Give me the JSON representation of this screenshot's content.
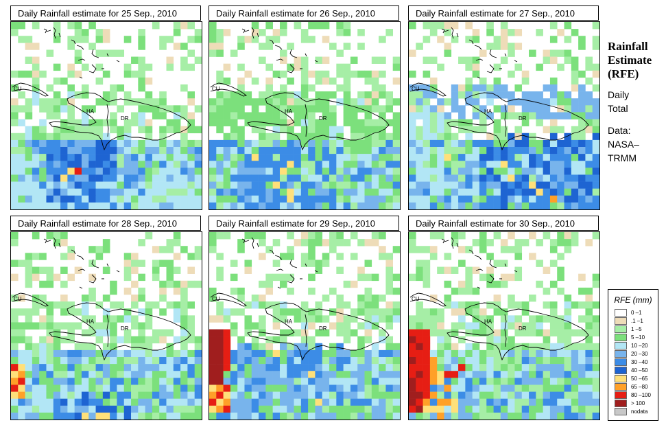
{
  "panels": [
    {
      "title": "Daily Rainfall estimate for  25 Sep., 2010",
      "seed": 11,
      "scenario": "p1"
    },
    {
      "title": "Daily Rainfall estimate for  26 Sep., 2010",
      "seed": 23,
      "scenario": "p2"
    },
    {
      "title": "Daily Rainfall estimate for  27 Sep., 2010",
      "seed": 37,
      "scenario": "p3"
    },
    {
      "title": "Daily Rainfall estimate for  28 Sep., 2010",
      "seed": 41,
      "scenario": "p4"
    },
    {
      "title": "Daily Rainfall estimate for  29 Sep., 2010",
      "seed": 53,
      "scenario": "p5"
    },
    {
      "title": "Daily Rainfall estimate for  30 Sep., 2010",
      "seed": 67,
      "scenario": "p6"
    }
  ],
  "map_labels": {
    "cu": "CU",
    "ha": "HA",
    "dr": "DR"
  },
  "side": {
    "title_line1": "Rainfall",
    "title_line2": "Estimate",
    "title_line3": "(RFE)",
    "daily": "Daily",
    "total": "Total",
    "data": "Data:",
    "nasa": "NASA–",
    "trmm": "TRMM"
  },
  "legend": {
    "title": "RFE (mm)",
    "classes": [
      {
        "label": "0 –1",
        "color": "#ffffff"
      },
      {
        "label": ".1 –1",
        "color": "#eedcb8"
      },
      {
        "label": "1 –5",
        "color": "#a6eea6"
      },
      {
        "label": "5 –10",
        "color": "#7ce07c"
      },
      {
        "label": "10 –20",
        "color": "#b2e6f5"
      },
      {
        "label": "20 –30",
        "color": "#78b4ec"
      },
      {
        "label": "30 –40",
        "color": "#3c8ce6"
      },
      {
        "label": "40 –50",
        "color": "#1e64d2"
      },
      {
        "label": "50 –65",
        "color": "#ffe07a"
      },
      {
        "label": "65 –80",
        "color": "#ffa028"
      },
      {
        "label": "80 –100",
        "color": "#e61e14"
      },
      {
        "label": "> 100",
        "color": "#a01e1e"
      },
      {
        "label": "nodata",
        "color": "#c8c8c8"
      }
    ]
  }
}
